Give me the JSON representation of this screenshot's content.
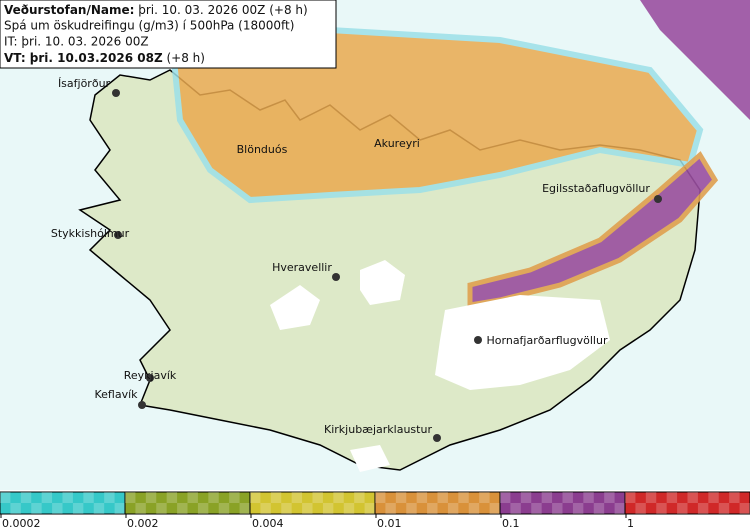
{
  "header": {
    "line1": {
      "bold": "Veðurstofan/Name:",
      "rest": " þri. 10. 03. 2026 00Z (+8 h)"
    },
    "line2": "Spá um öskudreifingu (g/m3) í 500hPa (18000ft)",
    "line3": "IT: þri. 10. 03. 2026 00Z",
    "line4": {
      "bold": "VT: þri. 10.03.2026 08Z",
      "rest": " (+8 h)"
    }
  },
  "places": [
    {
      "label": "Ísafjörður"
    },
    {
      "label": "Blönduós"
    },
    {
      "label": "Akureyri"
    },
    {
      "label": "Egilsstaðaflugvöllur"
    },
    {
      "label": "Stykkishólmur"
    },
    {
      "label": "Hveravellir"
    },
    {
      "label": "Hornafjarðarflugvöllur"
    },
    {
      "label": "Reykjavík"
    },
    {
      "label": "Keflavík"
    },
    {
      "label": "Kirkjubæjarklaustur"
    }
  ],
  "legend": {
    "colors": [
      "#36c8c8",
      "#8aa226",
      "#d2c431",
      "#d9913a",
      "#8b3d8f",
      "#d02828"
    ],
    "labels": [
      "0.0002",
      "0.002",
      "0.004",
      "0.01",
      "0.1",
      "1"
    ]
  }
}
